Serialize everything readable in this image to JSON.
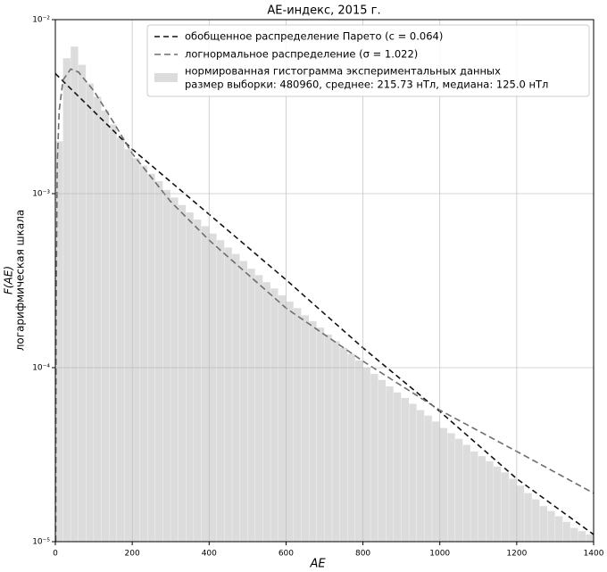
{
  "chart_data": {
    "type": "histogram",
    "title": "AE-индекс, 2015 г.",
    "xlabel": "AE",
    "ylabel": [
      "F(AE)",
      "логарифмическая шкала"
    ],
    "name": [
      "нормированная гистограмма экспериментальных данных",
      "размер выборки: 480960, среднее: 215.73  нТл, медиана: 125.0 нТл"
    ],
    "color": "#dcdcdc",
    "bins": [
      0,
      20,
      40,
      60,
      80,
      100,
      120,
      140,
      160,
      180,
      200,
      220,
      240,
      260,
      280,
      300,
      320,
      340,
      360,
      380,
      400,
      420,
      440,
      460,
      480,
      500,
      520,
      540,
      560,
      580,
      600,
      620,
      640,
      660,
      680,
      700,
      720,
      740,
      760,
      780,
      800,
      820,
      840,
      860,
      880,
      900,
      920,
      940,
      960,
      980,
      1000,
      1020,
      1040,
      1060,
      1080,
      1100,
      1120,
      1140,
      1160,
      1180,
      1200,
      1220,
      1240,
      1260,
      1280,
      1300,
      1320,
      1340,
      1360,
      1380,
      1400
    ],
    "counts": [
      0.002,
      0.006,
      0.007,
      0.0055,
      0.0043,
      0.0036,
      0.003,
      0.0025,
      0.0021,
      0.0018,
      0.0016,
      0.00145,
      0.0013,
      0.00118,
      0.00105,
      0.00095,
      0.00086,
      0.00078,
      0.00071,
      0.00065,
      0.00059,
      0.00054,
      0.00049,
      0.00045,
      0.00041,
      0.00037,
      0.00034,
      0.00031,
      0.000285,
      0.00026,
      0.00024,
      0.00022,
      0.0002,
      0.000185,
      0.00017,
      0.000155,
      0.000142,
      0.00013,
      0.00012,
      0.00011,
      0.0001,
      9.2e-05,
      8.5e-05,
      7.8e-05,
      7.2e-05,
      6.7e-05,
      6.2e-05,
      5.7e-05,
      5.3e-05,
      4.9e-05,
      4.5e-05,
      4.2e-05,
      3.9e-05,
      3.6e-05,
      3.3e-05,
      3.1e-05,
      2.9e-05,
      2.7e-05,
      2.5e-05,
      2.3e-05,
      2.1e-05,
      1.9e-05,
      1.75e-05,
      1.6e-05,
      1.5e-05,
      1.4e-05,
      1.3e-05,
      1.2e-05,
      1.15e-05,
      1.1e-05
    ],
    "lines": [
      {
        "name": "обобщенное распределение Парето (c = 0.064)",
        "color": "#111111",
        "x": [
          0,
          200,
          400,
          600,
          800,
          1000,
          1200,
          1400
        ],
        "values": [
          0.0049,
          0.0018,
          0.00076,
          0.00032,
          0.00013,
          5.6e-05,
          2.3e-05,
          1.1e-05
        ]
      },
      {
        "name": "логнормальное распределение (σ = 1.022)",
        "color": "#6e6e6e",
        "x": [
          1,
          2,
          5,
          10,
          20,
          40,
          60,
          100,
          150,
          200,
          300,
          400,
          600,
          800,
          1000,
          1200,
          1400
        ],
        "values": [
          1e-05,
          0.0002,
          0.0015,
          0.003,
          0.0045,
          0.0052,
          0.005,
          0.0039,
          0.0026,
          0.0017,
          0.0009,
          0.00054,
          0.00022,
          0.000109,
          5.7e-05,
          3.3e-05,
          1.9e-05
        ]
      }
    ],
    "xlim": [
      0,
      1400
    ],
    "xticks": [
      0,
      200,
      400,
      600,
      800,
      1000,
      1200,
      1400
    ],
    "ylim": [
      1e-05,
      0.01
    ],
    "yticks": [
      {
        "value": 1e-05,
        "label": "10⁻⁵"
      },
      {
        "value": 0.0001,
        "label": "10⁻⁴"
      },
      {
        "value": 0.001,
        "label": "10⁻³"
      },
      {
        "value": 0.01,
        "label": "10⁻²"
      }
    ],
    "yscale": "log",
    "grid": true,
    "legend": "upper right"
  }
}
